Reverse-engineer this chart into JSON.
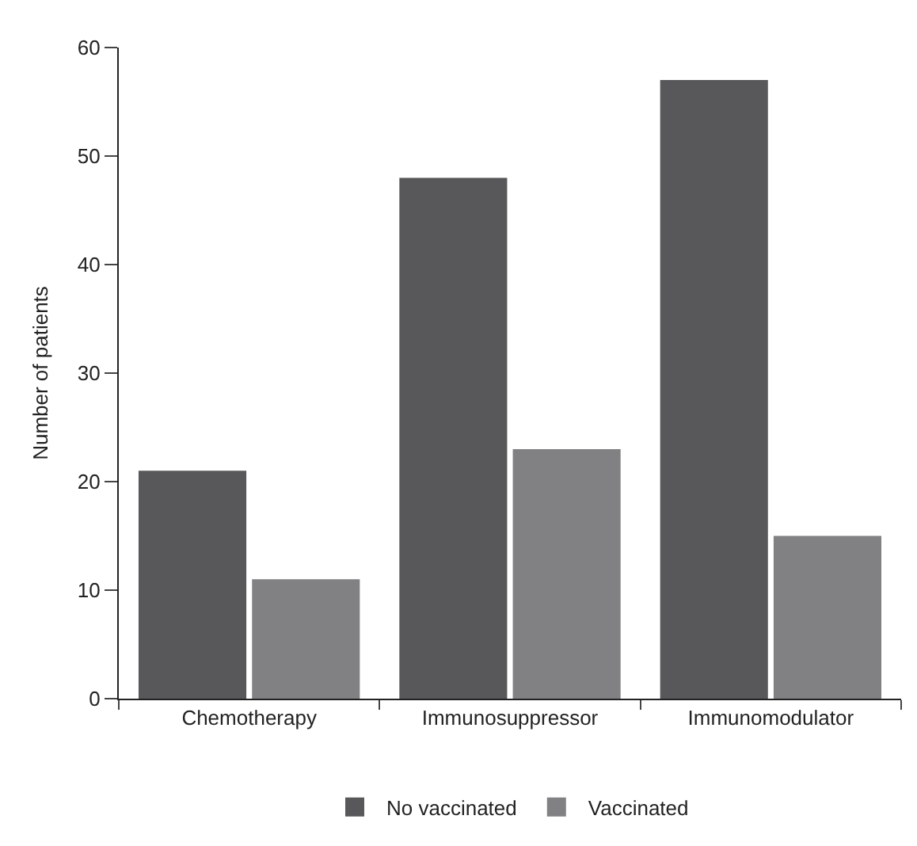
{
  "chart_data": {
    "type": "bar",
    "ylabel": "Number of patients",
    "categories": [
      "Chemotherapy",
      "Immunosuppressor",
      "Immunomodulator"
    ],
    "series": [
      {
        "name": "No vaccinated",
        "color": "#58585a",
        "values": [
          21,
          48,
          57
        ]
      },
      {
        "name": "Vaccinated",
        "color": "#818184",
        "values": [
          11,
          23,
          15
        ]
      }
    ],
    "ylim": [
      0,
      60
    ],
    "yticks": [
      0,
      10,
      20,
      30,
      40,
      50,
      60
    ],
    "legend": "bottom"
  }
}
